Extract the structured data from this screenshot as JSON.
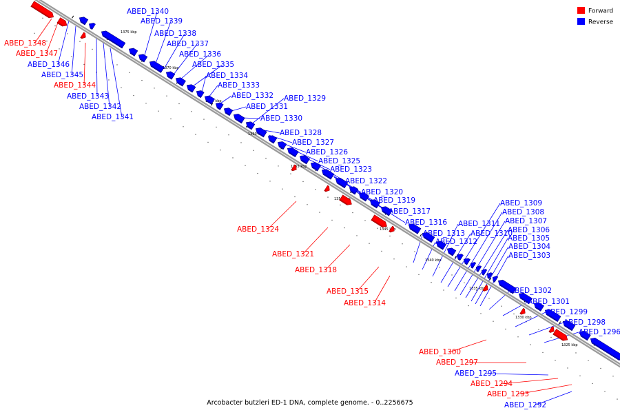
{
  "legend": [
    {
      "label": "Forward",
      "color": "#ff0000"
    },
    {
      "label": "Reverse",
      "color": "#0000ff"
    }
  ],
  "colors": {
    "forward": "#ff0000",
    "reverse": "#0000ff",
    "backbone": "#7f7f7f"
  },
  "caption": "Arcobacter butzleri ED-1 DNA, complete genome. - 0..2256675",
  "ticks": [
    "1375 kbp",
    "1370 kbp",
    "1365 kbp",
    "1360 kbp",
    "1355 kbp",
    "1350 kbp",
    "1345 kbp",
    "1340 kbp",
    "1335 kbp",
    "1330 kbp",
    "1325 kbp"
  ],
  "genes": [
    {
      "id": "ABED_1348",
      "strand": "forward"
    },
    {
      "id": "ABED_1347",
      "strand": "forward"
    },
    {
      "id": "ABED_1346",
      "strand": "reverse"
    },
    {
      "id": "ABED_1345",
      "strand": "reverse"
    },
    {
      "id": "ABED_1344",
      "strand": "forward"
    },
    {
      "id": "ABED_1343",
      "strand": "reverse"
    },
    {
      "id": "ABED_1342",
      "strand": "reverse"
    },
    {
      "id": "ABED_1341",
      "strand": "reverse"
    },
    {
      "id": "ABED_1340",
      "strand": "reverse"
    },
    {
      "id": "ABED_1339",
      "strand": "reverse"
    },
    {
      "id": "ABED_1338",
      "strand": "reverse"
    },
    {
      "id": "ABED_1337",
      "strand": "reverse"
    },
    {
      "id": "ABED_1336",
      "strand": "reverse"
    },
    {
      "id": "ABED_1335",
      "strand": "reverse"
    },
    {
      "id": "ABED_1334",
      "strand": "reverse"
    },
    {
      "id": "ABED_1333",
      "strand": "reverse"
    },
    {
      "id": "ABED_1332",
      "strand": "reverse"
    },
    {
      "id": "ABED_1331",
      "strand": "reverse"
    },
    {
      "id": "ABED_1330",
      "strand": "reverse"
    },
    {
      "id": "ABED_1329",
      "strand": "reverse"
    },
    {
      "id": "ABED_1328",
      "strand": "reverse"
    },
    {
      "id": "ABED_1327",
      "strand": "reverse"
    },
    {
      "id": "ABED_1326",
      "strand": "reverse"
    },
    {
      "id": "ABED_1325",
      "strand": "reverse"
    },
    {
      "id": "ABED_1324",
      "strand": "forward"
    },
    {
      "id": "ABED_1323",
      "strand": "reverse"
    },
    {
      "id": "ABED_1322",
      "strand": "reverse"
    },
    {
      "id": "ABED_1321",
      "strand": "forward"
    },
    {
      "id": "ABED_1320",
      "strand": "reverse"
    },
    {
      "id": "ABED_1319",
      "strand": "reverse"
    },
    {
      "id": "ABED_1318",
      "strand": "forward"
    },
    {
      "id": "ABED_1317",
      "strand": "reverse"
    },
    {
      "id": "ABED_1316",
      "strand": "reverse"
    },
    {
      "id": "ABED_1315",
      "strand": "forward"
    },
    {
      "id": "ABED_1314",
      "strand": "forward"
    },
    {
      "id": "ABED_1313",
      "strand": "reverse"
    },
    {
      "id": "ABED_1312",
      "strand": "reverse"
    },
    {
      "id": "ABED_1311",
      "strand": "reverse"
    },
    {
      "id": "ABED_1310",
      "strand": "reverse"
    },
    {
      "id": "ABED_1309",
      "strand": "reverse"
    },
    {
      "id": "ABED_1308",
      "strand": "reverse"
    },
    {
      "id": "ABED_1307",
      "strand": "reverse"
    },
    {
      "id": "ABED_1306",
      "strand": "reverse"
    },
    {
      "id": "ABED_1305",
      "strand": "reverse"
    },
    {
      "id": "ABED_1304",
      "strand": "reverse"
    },
    {
      "id": "ABED_1303",
      "strand": "reverse"
    },
    {
      "id": "ABED_1302",
      "strand": "reverse"
    },
    {
      "id": "ABED_1301",
      "strand": "reverse"
    },
    {
      "id": "ABED_1300",
      "strand": "forward"
    },
    {
      "id": "ABED_1299",
      "strand": "reverse"
    },
    {
      "id": "ABED_1298",
      "strand": "reverse"
    },
    {
      "id": "ABED_1297",
      "strand": "forward"
    },
    {
      "id": "ABED_1296",
      "strand": "reverse"
    },
    {
      "id": "ABED_1295",
      "strand": "reverse"
    },
    {
      "id": "ABED_1294",
      "strand": "forward"
    },
    {
      "id": "ABED_1293",
      "strand": "forward"
    },
    {
      "id": "ABED_1292",
      "strand": "reverse"
    }
  ]
}
